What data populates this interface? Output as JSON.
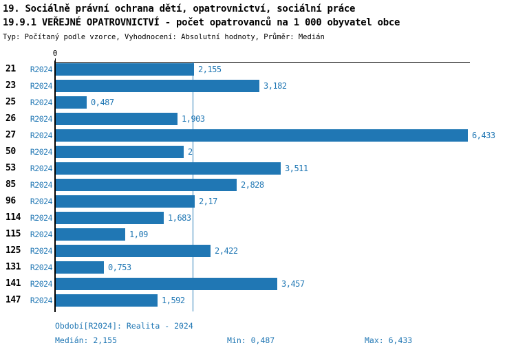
{
  "header": {
    "title_line1": "19. Sociálně právní ochrana dětí, opatrovnictví, sociální práce",
    "title_line2": "19.9.1 VEŘEJNÉ OPATROVNICTVÍ - počet opatrovanců na 1 000 obyvatel obce",
    "subtitle": "Typ: Počítaný podle vzorce, Vyhodnocení: Absolutní hodnoty, Průměr: Medián"
  },
  "chart_data": {
    "type": "bar",
    "orientation": "horizontal",
    "title": "19.9.1 VEŘEJNÉ OPATROVNICTVÍ - počet opatrovanců na 1 000 obyvatel obce",
    "categories": [
      "21",
      "23",
      "25",
      "26",
      "27",
      "50",
      "53",
      "85",
      "96",
      "114",
      "115",
      "125",
      "131",
      "141",
      "147"
    ],
    "series_label": "R2024",
    "values": [
      2.155,
      3.182,
      0.487,
      1.903,
      6.433,
      2.0,
      3.511,
      2.828,
      2.17,
      1.683,
      1.09,
      2.422,
      0.753,
      3.457,
      1.592
    ],
    "value_labels": [
      "2,155",
      "3,182",
      "0,487",
      "1,903",
      "6,433",
      "2",
      "3,511",
      "2,828",
      "2,17",
      "1,683",
      "1,09",
      "2,422",
      "0,753",
      "3,457",
      "1,592"
    ],
    "x_axis_tick": "0",
    "xlim": [
      0,
      6.47
    ],
    "median_reference": 2.155,
    "grid": false,
    "legend": false
  },
  "footer": {
    "period": "Období[R2024]: Realita - 2024",
    "median": "Medián: 2,155",
    "min": "Min: 0,487",
    "max": "Max: 6,433"
  },
  "colors": {
    "bar": "#2077b4",
    "blue_text": "#2077b4",
    "median_line": "#2077b4",
    "axis": "#000000",
    "background": "#ffffff"
  }
}
